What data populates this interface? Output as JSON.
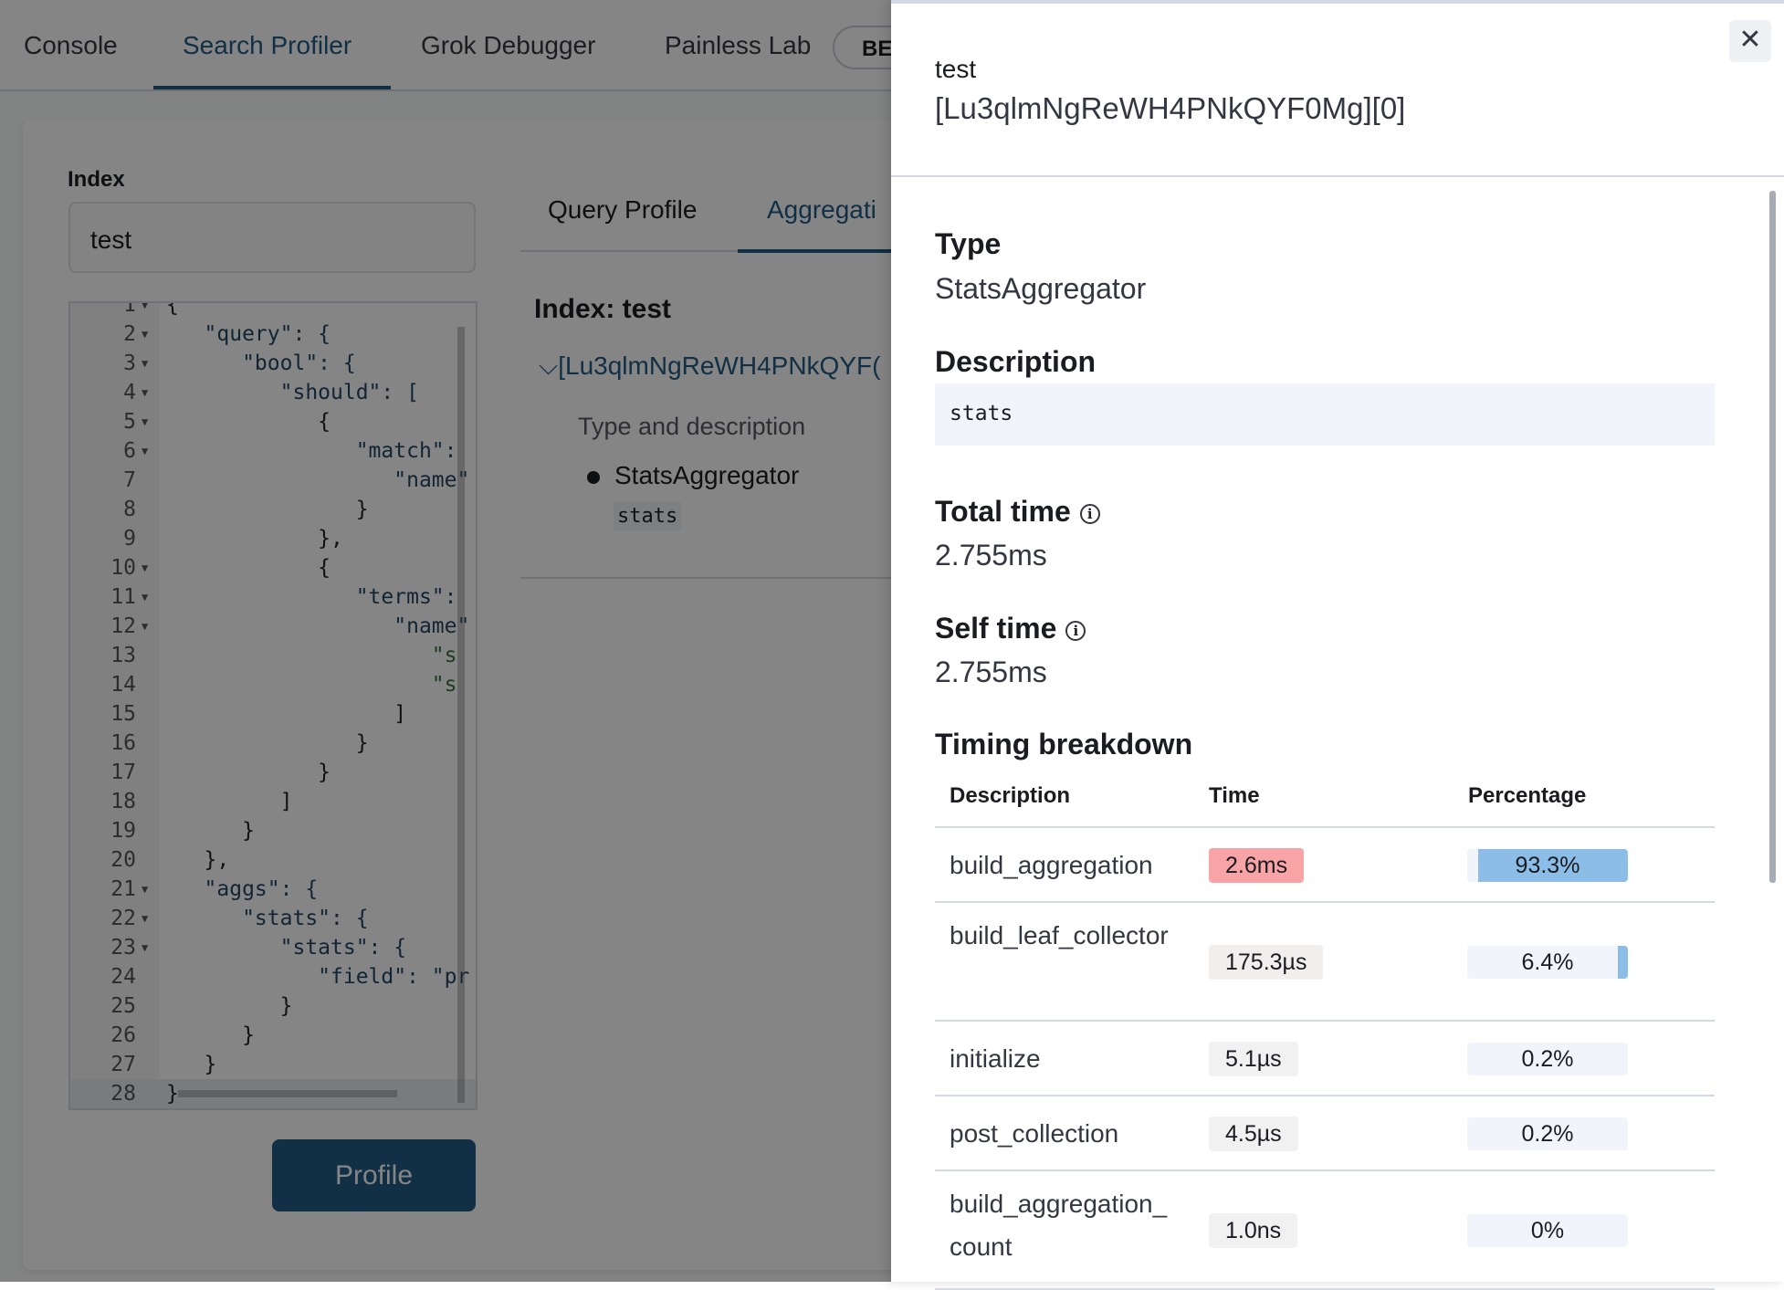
{
  "nav": {
    "tabs": [
      {
        "label": "Console",
        "active": false
      },
      {
        "label": "Search Profiler",
        "active": true
      },
      {
        "label": "Grok Debugger",
        "active": false
      },
      {
        "label": "Painless Lab",
        "active": false
      }
    ],
    "beta_badge": "BE"
  },
  "form": {
    "index_label": "Index",
    "index_value": "test",
    "profile_button": "Profile"
  },
  "editor": {
    "lines": [
      "{",
      "   \"query\": {",
      "      \"bool\": {",
      "         \"should\": [",
      "            {",
      "               \"match\":",
      "                  \"name\"",
      "               }",
      "            },",
      "            {",
      "               \"terms\":",
      "                  \"name\"",
      "                     \"s",
      "                     \"s",
      "                  ]",
      "               }",
      "            }",
      "         ]",
      "      }",
      "   },",
      "   \"aggs\": {",
      "      \"stats\": {",
      "         \"stats\": {",
      "            \"field\": \"pr",
      "         }",
      "      }",
      "   }",
      "}"
    ],
    "foldable_lines": [
      1,
      2,
      3,
      4,
      5,
      6,
      10,
      11,
      12,
      21,
      22,
      23
    ],
    "current_line": 28
  },
  "results": {
    "tabs": [
      {
        "label": "Query Profile",
        "active": false
      },
      {
        "label": "Aggregati",
        "active": true
      }
    ],
    "index_title": "Index: test",
    "shard_link": "[Lu3qlmNgReWH4PNkQYF(",
    "type_desc_label": "Type and description",
    "agg_type": "StatsAggregator",
    "agg_desc": "stats"
  },
  "flyout": {
    "index": "test",
    "shard": "[Lu3qlmNgReWH4PNkQYF0Mg][0]",
    "close_icon": "close-icon",
    "type_heading": "Type",
    "type_value": "StatsAggregator",
    "description_heading": "Description",
    "description_value": "stats",
    "total_time_heading": "Total time",
    "total_time_value": "2.755ms",
    "self_time_heading": "Self time",
    "self_time_value": "2.755ms",
    "info_icon": "i",
    "timing_heading": "Timing breakdown",
    "columns": [
      "Description",
      "Time",
      "Percentage"
    ],
    "rows": [
      {
        "description": "build_aggregation",
        "time": "2.6ms",
        "percentage": "93.3%",
        "pct_value": 93.3,
        "time_color": "#f8a4a6"
      },
      {
        "description": "build_leaf_collector",
        "time": "175.3µs",
        "percentage": "6.4%",
        "pct_value": 6.4,
        "time_color": "#f3eeee"
      },
      {
        "description": "initialize",
        "time": "5.1µs",
        "percentage": "0.2%",
        "pct_value": 0.2,
        "time_color": "#f1f1f2"
      },
      {
        "description": "post_collection",
        "time": "4.5µs",
        "percentage": "0.2%",
        "pct_value": 0.2,
        "time_color": "#f1f1f2"
      },
      {
        "description": "build_aggregation_count",
        "time": "1.0ns",
        "percentage": "0%",
        "pct_value": 0,
        "time_color": "#f1f1f2"
      }
    ],
    "colors": {
      "accent": "#0061a6",
      "percentage_fill": "#8bbde6"
    }
  }
}
